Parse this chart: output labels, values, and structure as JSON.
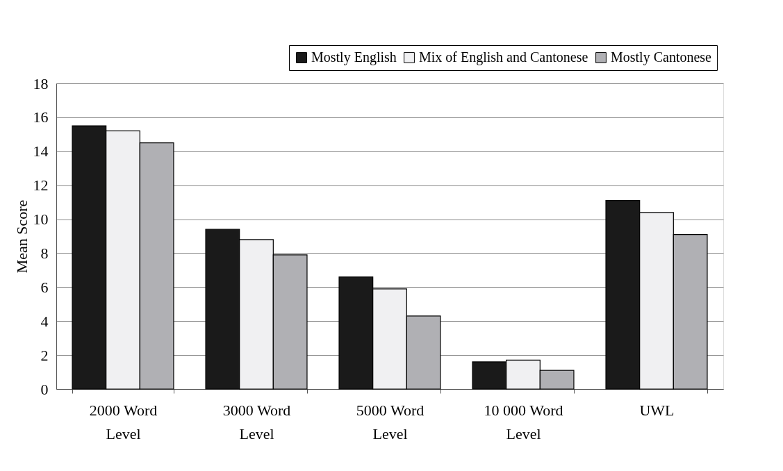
{
  "chart_data": {
    "type": "bar",
    "ylabel": "Mean Score",
    "categories": [
      "2000 Word Level",
      "3000 Word Level",
      "5000 Word Level",
      "10 000 Word Level",
      "UWL"
    ],
    "series": [
      {
        "name": "Mostly English",
        "color": "#1a1a1a",
        "values": [
          15.5,
          9.4,
          6.6,
          1.6,
          11.1
        ]
      },
      {
        "name": "Mix of English and Cantonese",
        "color": "#f0f0f2",
        "values": [
          15.2,
          8.8,
          5.9,
          1.7,
          10.4
        ]
      },
      {
        "name": "Mostly Cantonese",
        "color": "#b0b0b4",
        "values": [
          14.5,
          7.9,
          4.3,
          1.1,
          9.1
        ]
      }
    ],
    "ylim": [
      0,
      18
    ],
    "yticks": [
      0,
      2,
      4,
      6,
      8,
      10,
      12,
      14,
      16,
      18
    ],
    "grid": "y",
    "legend": "top right"
  }
}
